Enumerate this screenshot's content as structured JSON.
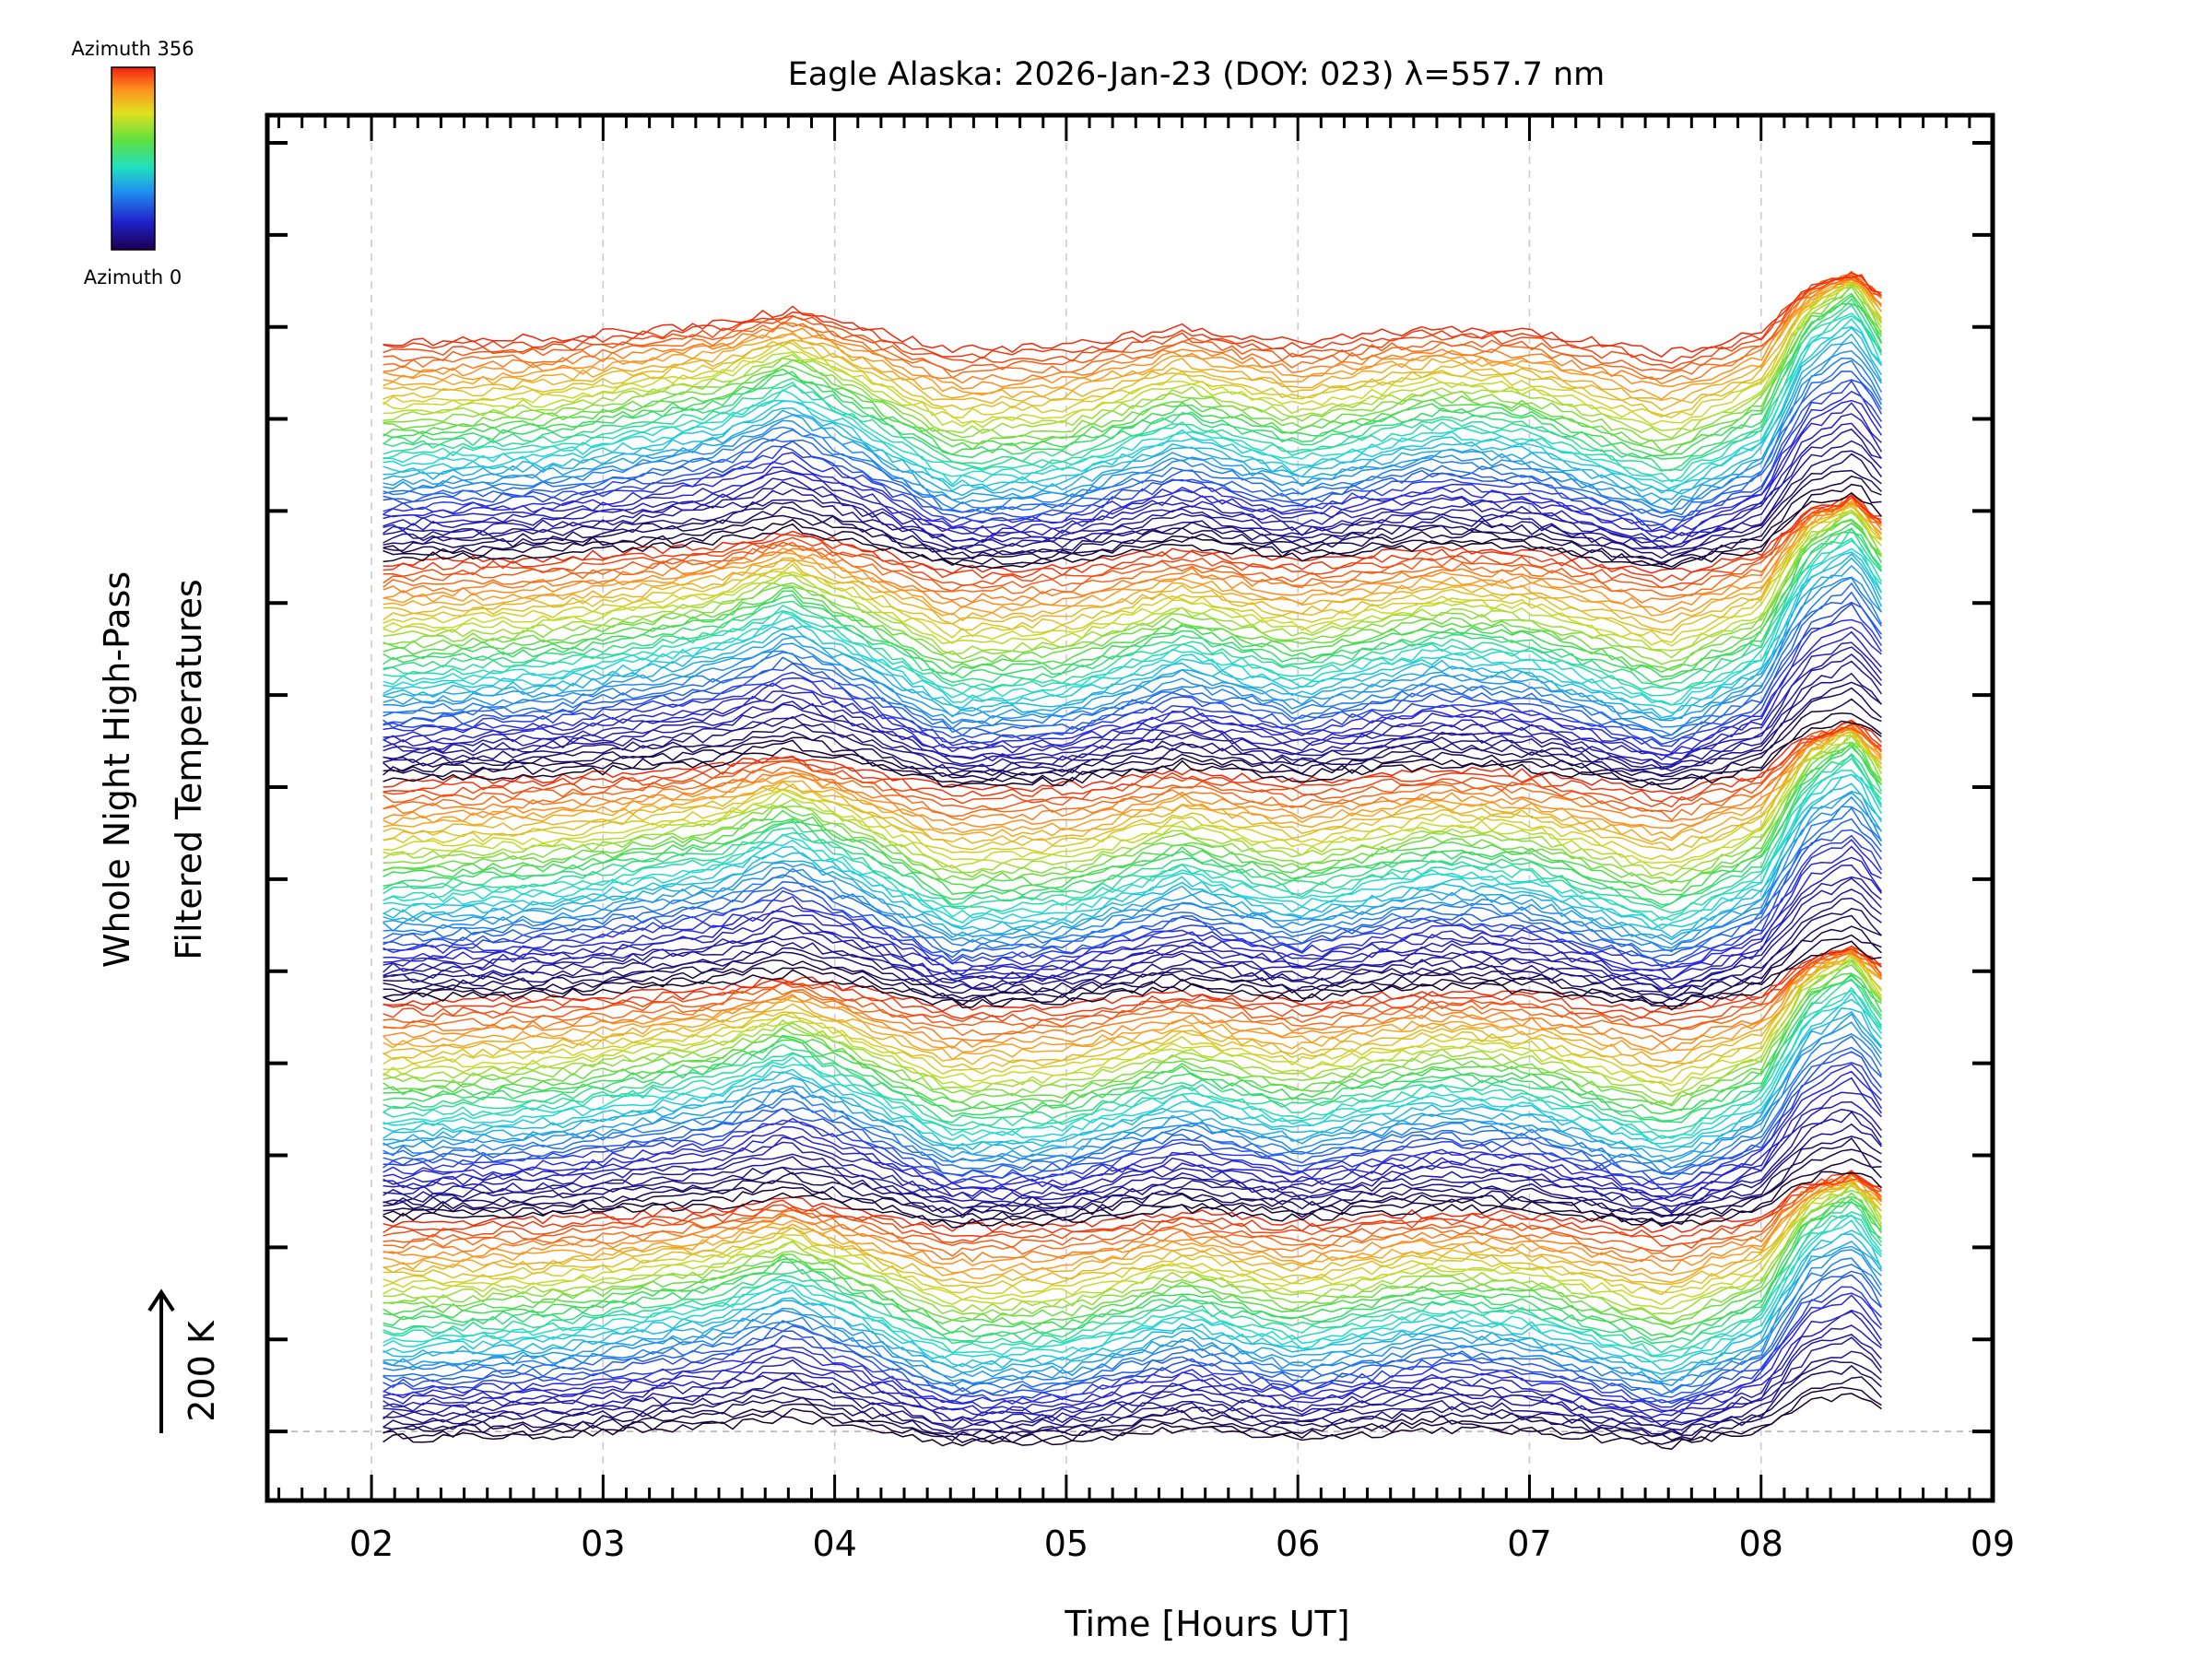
{
  "chart_data": {
    "type": "line",
    "title": "Eagle Alaska: 2026-Jan-23 (DOY: 023) λ=557.7 nm",
    "xlabel": "Time [Hours UT]",
    "ylabel_line1": "Whole Night High-Pass",
    "ylabel_line2": "Filtered Temperatures",
    "scale_label": "200 K",
    "xlim": [
      1.55,
      9.0
    ],
    "x_ticks": [
      2,
      3,
      4,
      5,
      6,
      7,
      8,
      9
    ],
    "x_tick_labels": [
      "02",
      "03",
      "04",
      "05",
      "06",
      "07",
      "08",
      "09"
    ],
    "data_x_range": [
      2.05,
      8.52
    ],
    "ylim_K": [
      -75,
      1430
    ],
    "y_tick_step_K": 100,
    "zero_baseline_K": 0,
    "series_count": 240,
    "series_offset_K": 5,
    "azimuth_groups": 5,
    "azimuth_min": 0,
    "azimuth_max": 356,
    "colorbar": {
      "top_label": "Azimuth 356",
      "bottom_label": "Azimuth 0",
      "colormap": "rainbow (black-blue-cyan-green-yellow-orange-red)"
    },
    "shared_features_K": [
      {
        "hour": 2.05,
        "amp": -15
      },
      {
        "hour": 2.8,
        "amp": -8
      },
      {
        "hour": 3.5,
        "amp": 10
      },
      {
        "hour": 3.8,
        "amp": 30
      },
      {
        "hour": 4.1,
        "amp": 8
      },
      {
        "hour": 4.5,
        "amp": -25
      },
      {
        "hour": 5.0,
        "amp": -20
      },
      {
        "hour": 5.5,
        "amp": 5
      },
      {
        "hour": 6.0,
        "amp": -15
      },
      {
        "hour": 6.6,
        "amp": 5
      },
      {
        "hour": 7.0,
        "amp": 0
      },
      {
        "hour": 7.6,
        "amp": -30
      },
      {
        "hour": 8.0,
        "amp": 0
      },
      {
        "hour": 8.2,
        "amp": 60
      },
      {
        "hour": 8.4,
        "amp": 80
      },
      {
        "hour": 8.52,
        "amp": 50
      }
    ],
    "grid": "dashed vertical at each hour",
    "legend": "top-left colorbar"
  }
}
